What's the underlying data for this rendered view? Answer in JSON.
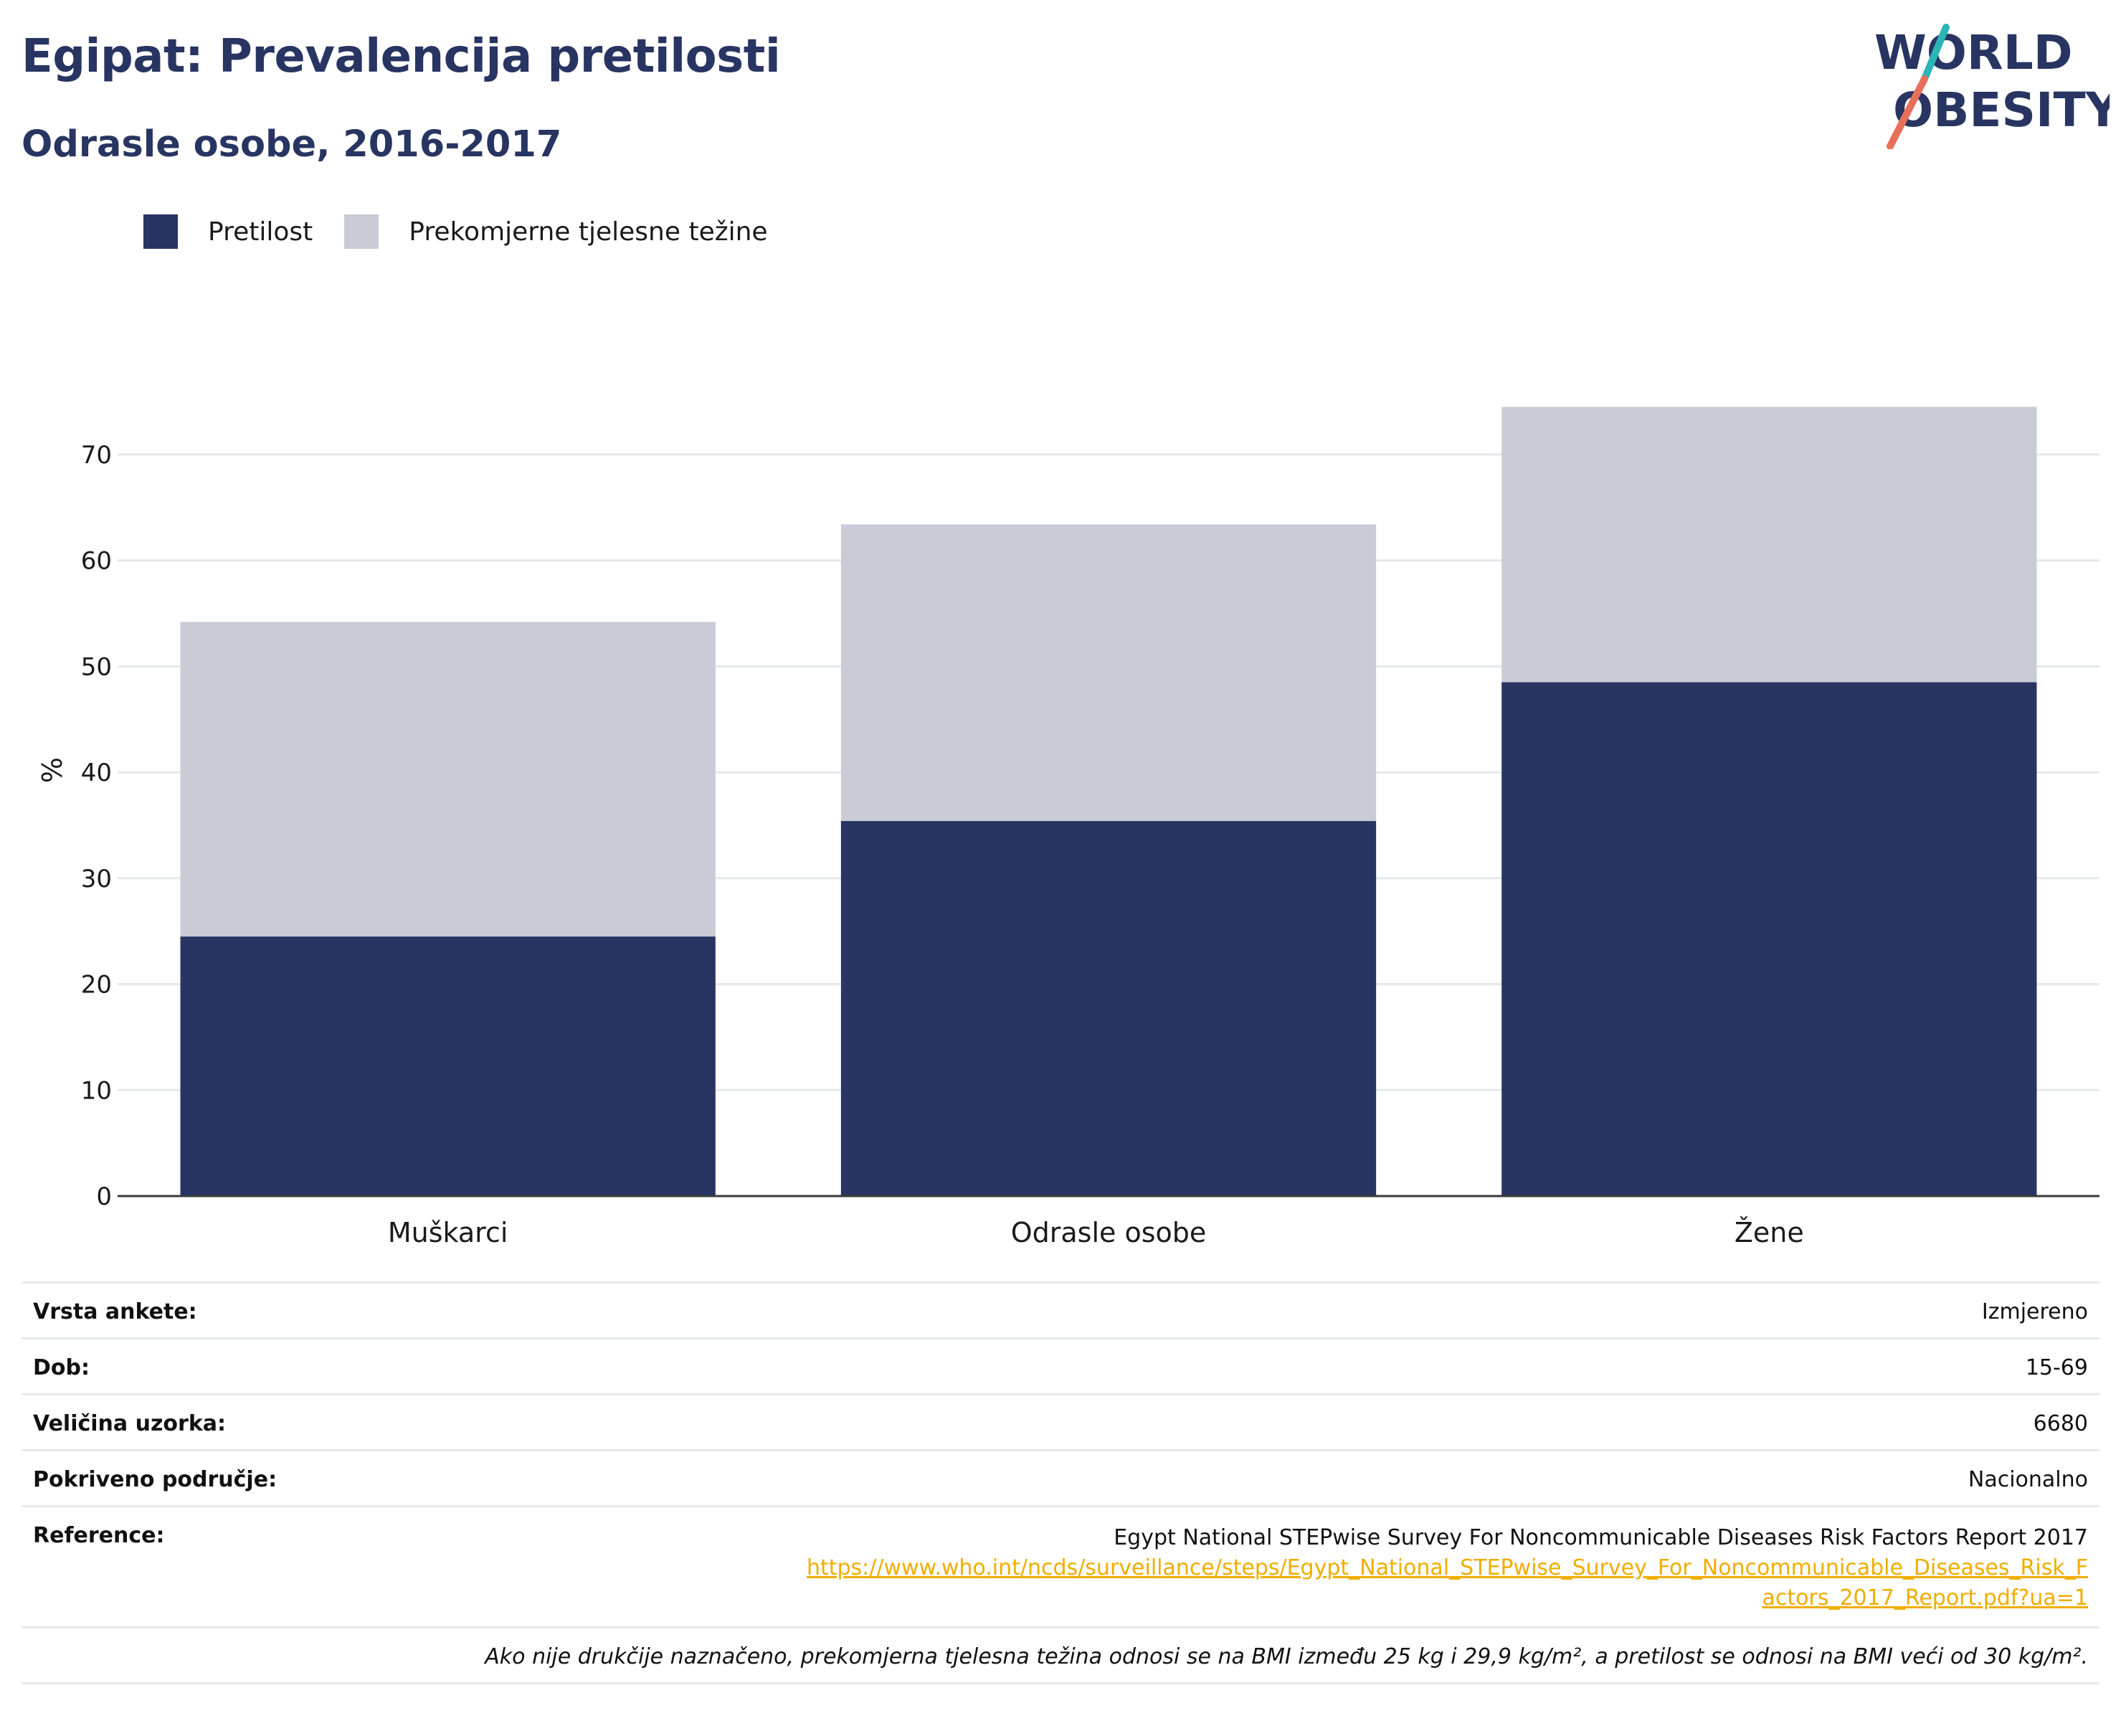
{
  "header": {
    "title": "Egipat: Prevalencija pretilosti",
    "subtitle": "Odrasle osobe, 2016-2017"
  },
  "logo": {
    "line1": "WORLD",
    "line2": "OBESITY"
  },
  "colors": {
    "obesity": "#283562",
    "overweight": "#c9cbd6",
    "accent_teal": "#2bb5b5",
    "accent_coral": "#e8705a",
    "link": "#f0ad00"
  },
  "legend": [
    {
      "label": "Pretilost",
      "color": "#283562"
    },
    {
      "label": "Prekomjerne tjelesne težine",
      "color": "#c9cbd6"
    }
  ],
  "chart_data": {
    "type": "bar",
    "stacked": true,
    "categories": [
      "Muškarci",
      "Odrasle osobe",
      "Žene"
    ],
    "series": [
      {
        "name": "Pretilost",
        "values": [
          24.5,
          35.4,
          48.5
        ]
      },
      {
        "name": "Prekomjerne tjelesne težine",
        "values": [
          29.7,
          28.0,
          26.0
        ]
      }
    ],
    "ylabel": "%",
    "ylim": [
      0,
      75
    ],
    "yticks": [
      0,
      10,
      20,
      30,
      40,
      50,
      60,
      70
    ],
    "grid": true,
    "legend_position": "top-left"
  },
  "info": {
    "rows": [
      {
        "label": "Vrsta ankete:",
        "value": "Izmjereno"
      },
      {
        "label": "Dob:",
        "value": "15-69"
      },
      {
        "label": "Veličina uzorka:",
        "value": "6680"
      },
      {
        "label": "Pokriveno područje:",
        "value": "Nacionalno"
      }
    ],
    "reference_label": "Reference:",
    "reference_text": "Egypt National STEPwise Survey For Noncommunicable Diseases Risk Factors Report 2017",
    "reference_url": "https://www.who.int/ncds/surveillance/steps/Egypt_National_STEPwise_Survey_For_Noncommunicable_Diseases_Risk_Factors_2017_Report.pdf?ua=1",
    "footnote": "Ako nije drukčije naznačeno, prekomjerna tjelesna težina odnosi se na BMI između 25 kg i 29,9 kg/m², a pretilost se odnosi na BMI veći od 30 kg/m²."
  }
}
